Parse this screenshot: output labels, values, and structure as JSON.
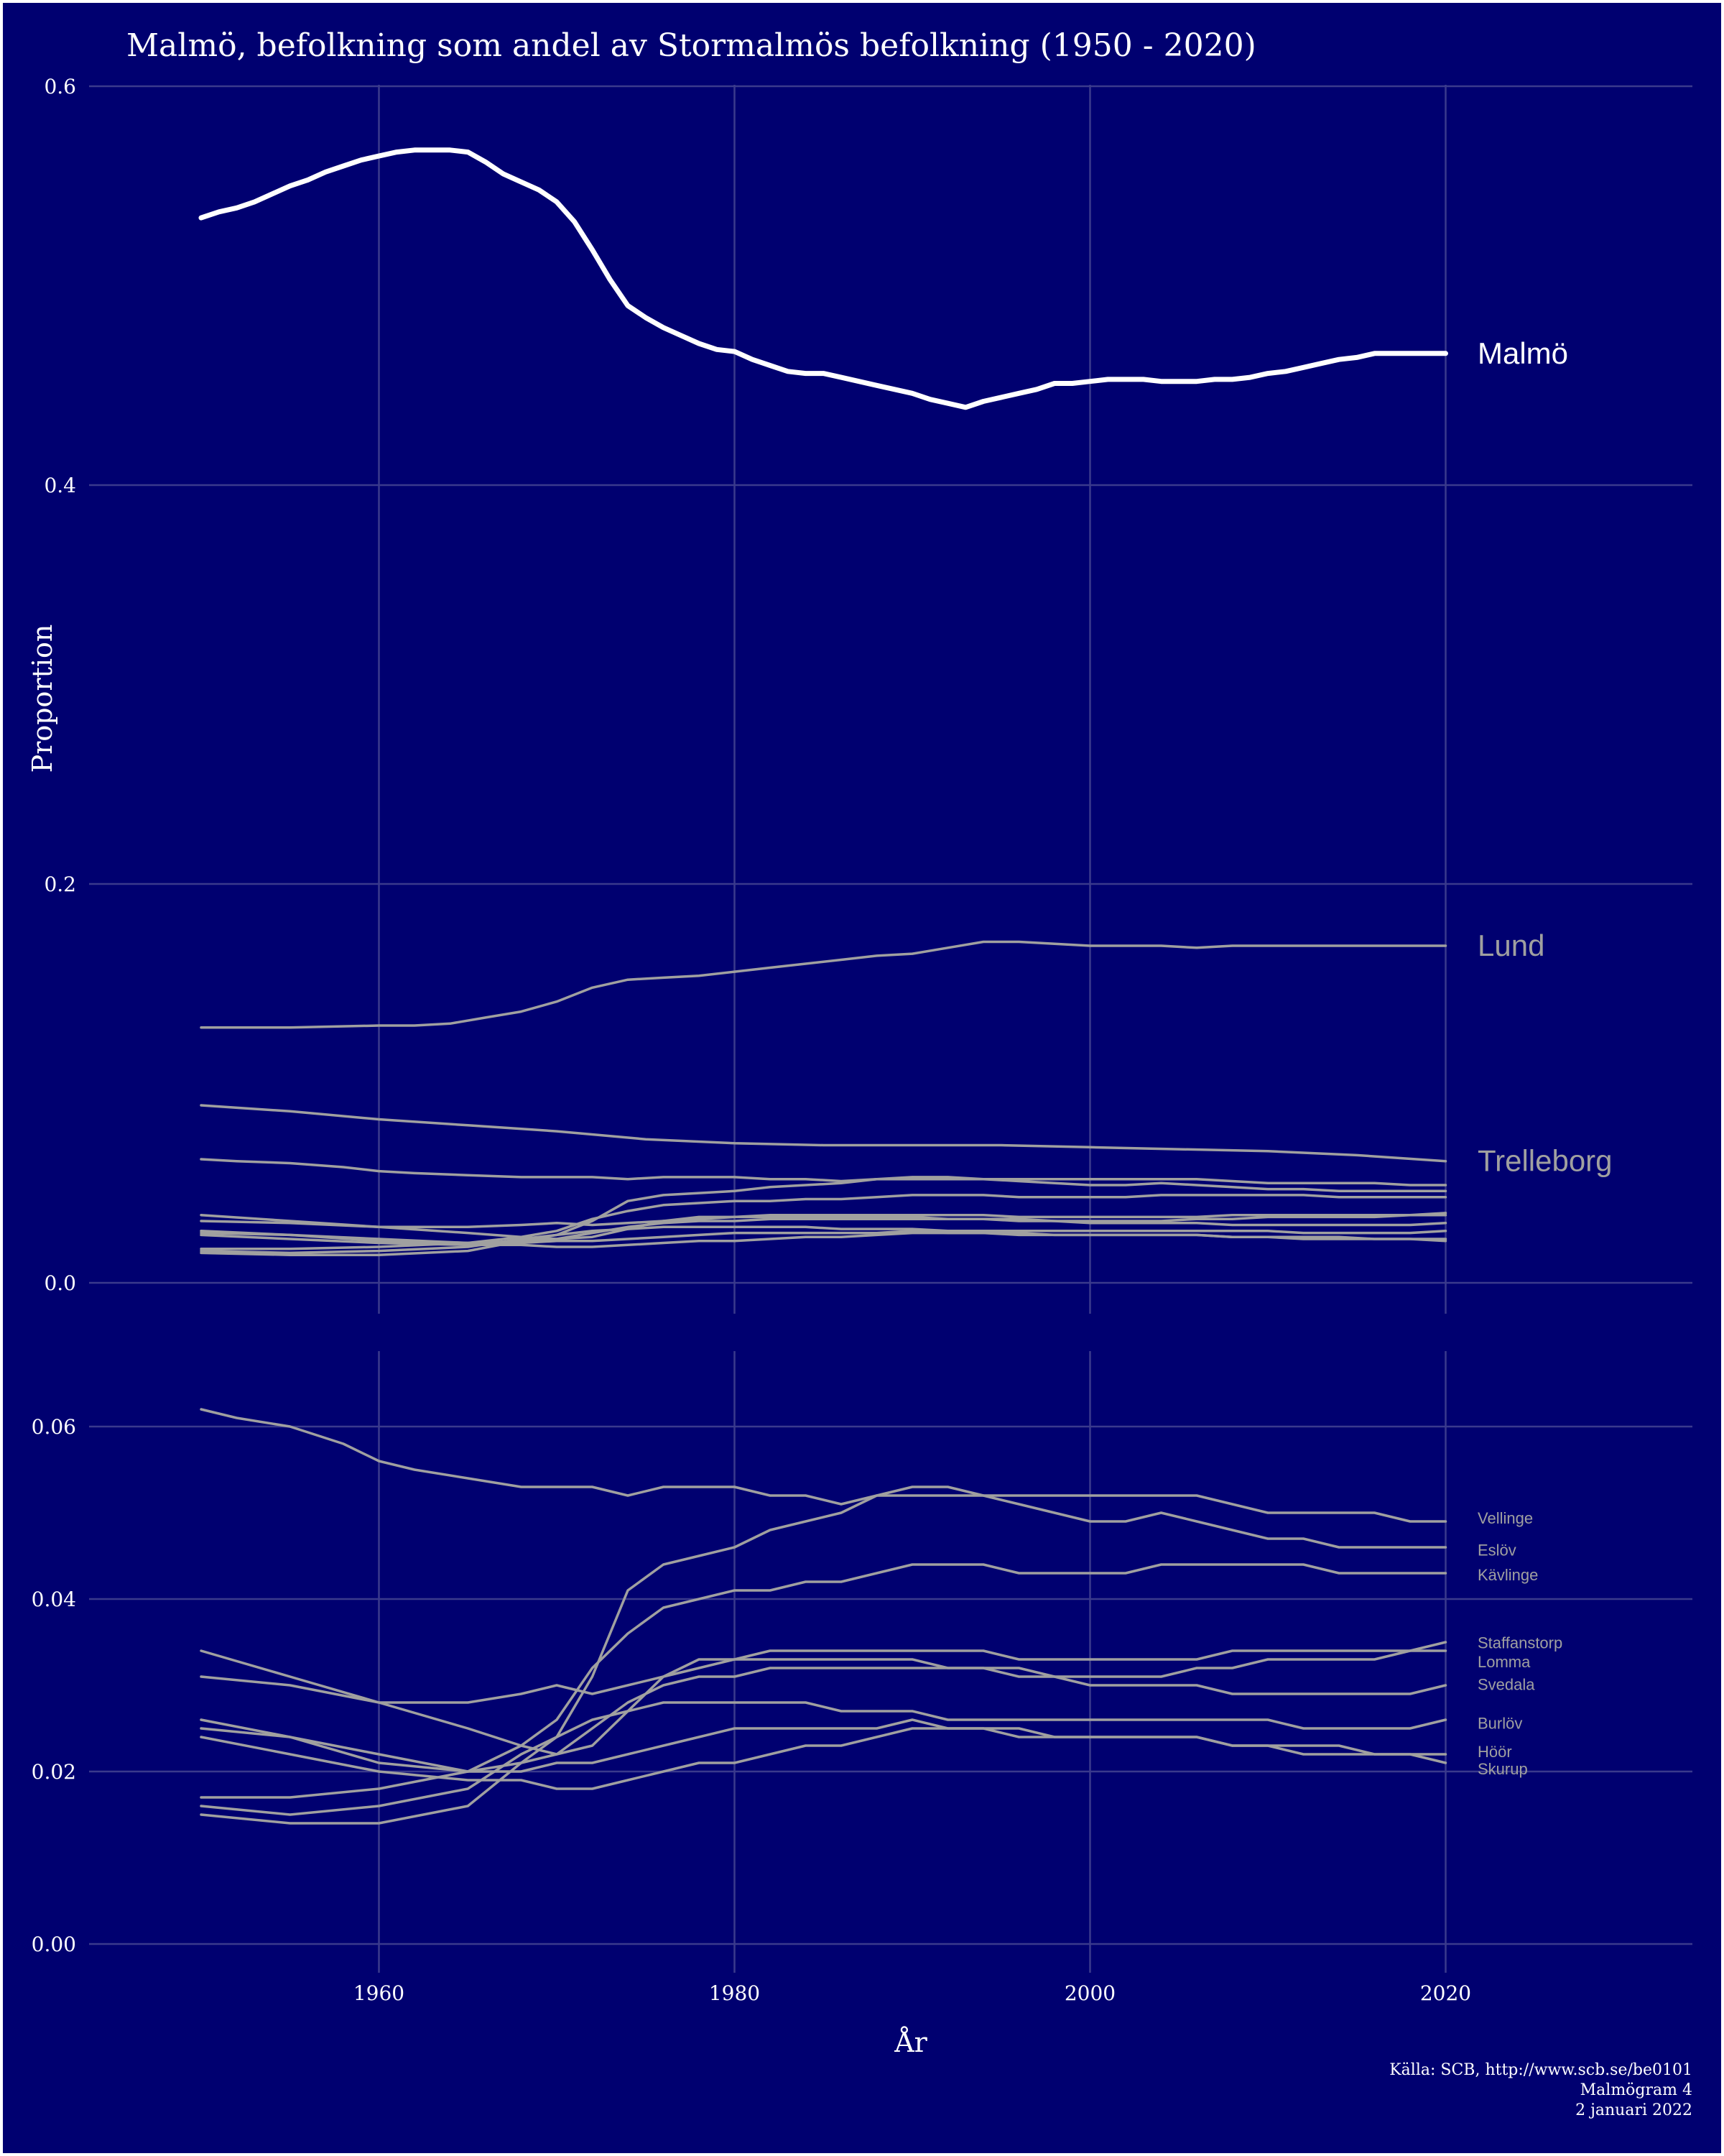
{
  "chart_data": [
    {
      "type": "line",
      "title": "Malmö, befolkning som andel av Stormalmös befolkning (1950 - 2020)",
      "ylabel": "Proportion",
      "ylim": [
        0,
        0.6
      ],
      "xlim": [
        1946,
        2028
      ],
      "yticks": [
        "0.0",
        "0.2",
        "0.4",
        "0.6"
      ],
      "yticks_values": [
        0.0,
        0.2,
        0.4,
        0.6
      ],
      "highlight_color": "#ffffff",
      "other_color": "#a0a0a0",
      "series": [
        {
          "name": "Malmö",
          "highlight": true,
          "x": [
            1950,
            1951,
            1952,
            1953,
            1954,
            1955,
            1956,
            1957,
            1958,
            1959,
            1960,
            1961,
            1962,
            1963,
            1964,
            1965,
            1966,
            1967,
            1968,
            1969,
            1970,
            1971,
            1972,
            1973,
            1974,
            1975,
            1976,
            1977,
            1978,
            1979,
            1980,
            1981,
            1982,
            1983,
            1984,
            1985,
            1986,
            1987,
            1988,
            1989,
            1990,
            1991,
            1992,
            1993,
            1994,
            1995,
            1996,
            1997,
            1998,
            1999,
            2000,
            2001,
            2002,
            2003,
            2004,
            2005,
            2006,
            2007,
            2008,
            2009,
            2010,
            2011,
            2012,
            2013,
            2014,
            2015,
            2016,
            2017,
            2018,
            2019,
            2020
          ],
          "y": [
            0.534,
            0.537,
            0.539,
            0.542,
            0.546,
            0.55,
            0.553,
            0.557,
            0.56,
            0.563,
            0.565,
            0.567,
            0.568,
            0.568,
            0.568,
            0.567,
            0.562,
            0.556,
            0.552,
            0.548,
            0.542,
            0.532,
            0.518,
            0.503,
            0.49,
            0.484,
            0.479,
            0.475,
            0.471,
            0.468,
            0.467,
            0.463,
            0.46,
            0.457,
            0.456,
            0.456,
            0.454,
            0.452,
            0.45,
            0.448,
            0.446,
            0.443,
            0.441,
            0.439,
            0.442,
            0.444,
            0.446,
            0.448,
            0.451,
            0.451,
            0.452,
            0.453,
            0.453,
            0.453,
            0.452,
            0.452,
            0.452,
            0.453,
            0.453,
            0.454,
            0.456,
            0.457,
            0.459,
            0.461,
            0.463,
            0.464,
            0.466,
            0.466,
            0.466,
            0.466,
            0.466
          ]
        },
        {
          "name": "Lund",
          "x": [
            1950,
            1955,
            1960,
            1962,
            1964,
            1966,
            1968,
            1970,
            1972,
            1974,
            1976,
            1978,
            1980,
            1982,
            1984,
            1986,
            1988,
            1990,
            1992,
            1994,
            1996,
            1998,
            2000,
            2002,
            2004,
            2006,
            2008,
            2010,
            2012,
            2014,
            2016,
            2018,
            2020
          ],
          "y": [
            0.128,
            0.128,
            0.129,
            0.129,
            0.13,
            0.133,
            0.136,
            0.141,
            0.148,
            0.152,
            0.153,
            0.154,
            0.156,
            0.158,
            0.16,
            0.162,
            0.164,
            0.165,
            0.168,
            0.171,
            0.171,
            0.17,
            0.169,
            0.169,
            0.169,
            0.168,
            0.169,
            0.169,
            0.169,
            0.169,
            0.169,
            0.169,
            0.169
          ]
        },
        {
          "name": "Trelleborg",
          "x": [
            1950,
            1955,
            1960,
            1965,
            1970,
            1975,
            1980,
            1985,
            1990,
            1995,
            2000,
            2005,
            2010,
            2015,
            2020
          ],
          "y": [
            0.089,
            0.086,
            0.082,
            0.079,
            0.076,
            0.072,
            0.07,
            0.069,
            0.069,
            0.069,
            0.068,
            0.067,
            0.066,
            0.064,
            0.061
          ]
        }
      ],
      "labels": [
        "Malmö",
        "Lund",
        "Trelleborg"
      ]
    },
    {
      "type": "line",
      "xlabel": "År",
      "ylim": [
        0,
        0.068
      ],
      "xlim": [
        1946,
        2028
      ],
      "xticks": [
        "1960",
        "1980",
        "2000",
        "2020"
      ],
      "xticks_values": [
        1960,
        1980,
        2000,
        2020
      ],
      "yticks": [
        "0.00",
        "0.02",
        "0.04",
        "0.06"
      ],
      "yticks_values": [
        0.0,
        0.02,
        0.04,
        0.06
      ],
      "series": [
        {
          "name": "Vellinge",
          "x": [
            1950,
            1952,
            1955,
            1958,
            1960,
            1962,
            1965,
            1968,
            1970,
            1972,
            1974,
            1976,
            1978,
            1980,
            1982,
            1984,
            1986,
            1988,
            1990,
            1992,
            1994,
            1996,
            1998,
            2000,
            2002,
            2004,
            2006,
            2008,
            2010,
            2012,
            2014,
            2016,
            2018,
            2020
          ],
          "y": [
            0.062,
            0.061,
            0.06,
            0.058,
            0.056,
            0.055,
            0.054,
            0.053,
            0.053,
            0.053,
            0.052,
            0.053,
            0.053,
            0.053,
            0.052,
            0.052,
            0.051,
            0.052,
            0.052,
            0.052,
            0.052,
            0.052,
            0.052,
            0.052,
            0.052,
            0.052,
            0.052,
            0.051,
            0.05,
            0.05,
            0.05,
            0.05,
            0.049,
            0.049
          ]
        },
        {
          "name": "Eslöv",
          "x": [
            1950,
            1955,
            1960,
            1965,
            1968,
            1970,
            1972,
            1974,
            1976,
            1978,
            1980,
            1982,
            1984,
            1986,
            1988,
            1990,
            1992,
            1994,
            1996,
            1998,
            2000,
            2002,
            2004,
            2006,
            2008,
            2010,
            2012,
            2014,
            2016,
            2018,
            2020
          ],
          "y": [
            0.034,
            0.031,
            0.028,
            0.025,
            0.023,
            0.022,
            0.023,
            0.027,
            0.031,
            0.033,
            0.033,
            0.034,
            0.034,
            0.034,
            0.034,
            0.034,
            0.034,
            0.034,
            0.033,
            0.033,
            0.033,
            0.033,
            0.033,
            0.033,
            0.034,
            0.034,
            0.034,
            0.034,
            0.034,
            0.034,
            0.034
          ]
        },
        {
          "name": "Kävlinge",
          "x": [
            1950,
            1955,
            1960,
            1965,
            1968,
            1970,
            1972,
            1974,
            1976,
            1978,
            1980,
            1982,
            1984,
            1986,
            1988,
            1990,
            1992,
            1994,
            1996,
            1998,
            2000,
            2002,
            2004,
            2006,
            2008,
            2010,
            2012,
            2014,
            2016,
            2018,
            2020
          ],
          "y": [
            0.017,
            0.017,
            0.018,
            0.02,
            0.023,
            0.026,
            0.032,
            0.036,
            0.039,
            0.04,
            0.041,
            0.041,
            0.042,
            0.042,
            0.043,
            0.044,
            0.044,
            0.044,
            0.043,
            0.043,
            0.043,
            0.043,
            0.044,
            0.044,
            0.044,
            0.044,
            0.044,
            0.043,
            0.043,
            0.043,
            0.043
          ]
        },
        {
          "name": "Staffanstorp",
          "x": [
            1950,
            1955,
            1960,
            1965,
            1968,
            1970,
            1972,
            1974,
            1976,
            1978,
            1980,
            1982,
            1984,
            1986,
            1988,
            1990,
            1992,
            1994,
            1996,
            1998,
            2000,
            2002,
            2004,
            2006,
            2008,
            2010,
            2012,
            2014,
            2016,
            2018,
            2020
          ],
          "y": [
            0.015,
            0.014,
            0.014,
            0.016,
            0.021,
            0.024,
            0.031,
            0.041,
            0.044,
            0.045,
            0.046,
            0.048,
            0.049,
            0.05,
            0.052,
            0.053,
            0.053,
            0.052,
            0.051,
            0.05,
            0.049,
            0.049,
            0.05,
            0.049,
            0.048,
            0.047,
            0.047,
            0.046,
            0.046,
            0.046,
            0.046
          ]
        },
        {
          "name": "Lomma",
          "x": [
            1950,
            1955,
            1960,
            1965,
            1968,
            1970,
            1972,
            1974,
            1976,
            1978,
            1980,
            1982,
            1984,
            1986,
            1988,
            1990,
            1992,
            1994,
            1996,
            1998,
            2000,
            2002,
            2004,
            2006,
            2008,
            2010,
            2012,
            2014,
            2016,
            2018,
            2020
          ],
          "y": [
            0.031,
            0.03,
            0.028,
            0.028,
            0.029,
            0.03,
            0.029,
            0.03,
            0.031,
            0.032,
            0.033,
            0.033,
            0.033,
            0.033,
            0.033,
            0.033,
            0.032,
            0.032,
            0.032,
            0.031,
            0.031,
            0.031,
            0.031,
            0.032,
            0.032,
            0.033,
            0.033,
            0.033,
            0.033,
            0.034,
            0.035
          ]
        },
        {
          "name": "Svedala",
          "x": [
            1950,
            1955,
            1960,
            1965,
            1968,
            1970,
            1972,
            1974,
            1976,
            1978,
            1980,
            1982,
            1984,
            1986,
            1988,
            1990,
            1992,
            1994,
            1996,
            1998,
            2000,
            2002,
            2004,
            2006,
            2008,
            2010,
            2012,
            2014,
            2016,
            2018,
            2020
          ],
          "y": [
            0.026,
            0.024,
            0.022,
            0.02,
            0.021,
            0.022,
            0.025,
            0.028,
            0.03,
            0.031,
            0.031,
            0.032,
            0.032,
            0.032,
            0.032,
            0.032,
            0.032,
            0.032,
            0.031,
            0.031,
            0.03,
            0.03,
            0.03,
            0.03,
            0.029,
            0.029,
            0.029,
            0.029,
            0.029,
            0.029,
            0.03
          ]
        },
        {
          "name": "Burlöv",
          "x": [
            1950,
            1955,
            1960,
            1965,
            1968,
            1970,
            1972,
            1974,
            1976,
            1978,
            1980,
            1982,
            1984,
            1986,
            1988,
            1990,
            1992,
            1994,
            1996,
            1998,
            2000,
            2002,
            2004,
            2006,
            2008,
            2010,
            2012,
            2014,
            2016,
            2018,
            2020
          ],
          "y": [
            0.016,
            0.015,
            0.016,
            0.018,
            0.022,
            0.024,
            0.026,
            0.027,
            0.028,
            0.028,
            0.028,
            0.028,
            0.028,
            0.027,
            0.027,
            0.027,
            0.026,
            0.026,
            0.026,
            0.026,
            0.026,
            0.026,
            0.026,
            0.026,
            0.026,
            0.026,
            0.025,
            0.025,
            0.025,
            0.025,
            0.026
          ]
        },
        {
          "name": "Höör",
          "x": [
            1950,
            1955,
            1960,
            1965,
            1968,
            1970,
            1972,
            1974,
            1976,
            1978,
            1980,
            1982,
            1984,
            1986,
            1988,
            1990,
            1992,
            1994,
            1996,
            1998,
            2000,
            2002,
            2004,
            2006,
            2008,
            2010,
            2012,
            2014,
            2016,
            2018,
            2020
          ],
          "y": [
            0.025,
            0.024,
            0.021,
            0.02,
            0.02,
            0.021,
            0.021,
            0.022,
            0.023,
            0.024,
            0.025,
            0.025,
            0.025,
            0.025,
            0.025,
            0.026,
            0.025,
            0.025,
            0.024,
            0.024,
            0.024,
            0.024,
            0.024,
            0.024,
            0.023,
            0.023,
            0.023,
            0.023,
            0.022,
            0.022,
            0.022
          ]
        },
        {
          "name": "Skurup",
          "x": [
            1950,
            1955,
            1960,
            1965,
            1968,
            1970,
            1972,
            1974,
            1976,
            1978,
            1980,
            1982,
            1984,
            1986,
            1988,
            1990,
            1992,
            1994,
            1996,
            1998,
            2000,
            2002,
            2004,
            2006,
            2008,
            2010,
            2012,
            2014,
            2016,
            2018,
            2020
          ],
          "y": [
            0.024,
            0.022,
            0.02,
            0.019,
            0.019,
            0.018,
            0.018,
            0.019,
            0.02,
            0.021,
            0.021,
            0.022,
            0.023,
            0.023,
            0.024,
            0.025,
            0.025,
            0.025,
            0.025,
            0.024,
            0.024,
            0.024,
            0.024,
            0.024,
            0.023,
            0.023,
            0.022,
            0.022,
            0.022,
            0.022,
            0.021
          ]
        }
      ],
      "labels": [
        "Vellinge",
        "Eslöv",
        "Kävlinge",
        "Staffanstorp",
        "Lomma",
        "Svedala",
        "Burlöv",
        "Höör",
        "Skurup"
      ]
    }
  ],
  "caption": {
    "line1": "Källa: SCB, http://www.scb.se/be0101",
    "line2": "Malmögram 4",
    "line3": "2 januari 2022"
  },
  "colors": {
    "background": "#000070",
    "grid": "#3a3a8c",
    "text": "#ffffff",
    "muted": "#a0a0a0"
  }
}
